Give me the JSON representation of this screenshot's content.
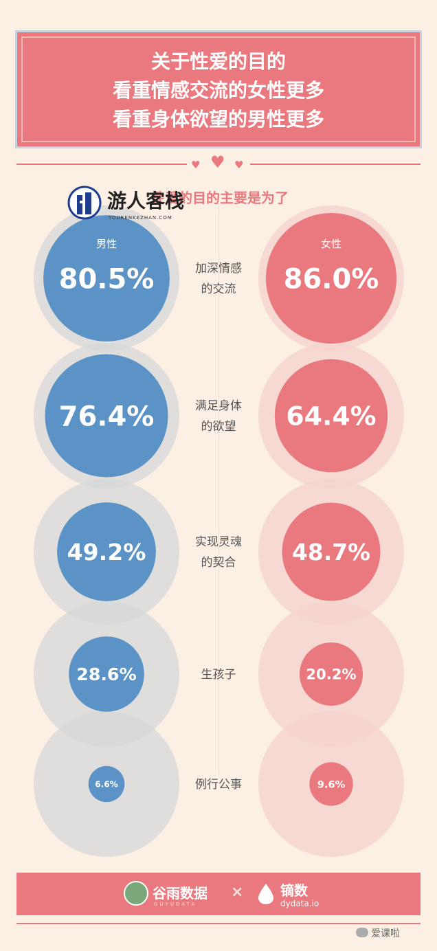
{
  "header": {
    "title_lines": [
      "关于性爱的目的",
      "看重情感交流的女性更多",
      "看重身体欲望的男性更多"
    ]
  },
  "subtitle": "性爱的目的主要是为了",
  "watermark": {
    "text": "游人客栈",
    "sub": "YOURENKEZHAN.COM",
    "icon": "building-logo-icon"
  },
  "labels": {
    "male": "男性",
    "female": "女性"
  },
  "colors": {
    "male": "#5b93c6",
    "female": "#e9797e",
    "male_halo": "#d6d8da",
    "female_halo": "#f6d2cd",
    "banner": "#e9797e",
    "background": "#fcefe3"
  },
  "chart_data": {
    "type": "bubble",
    "categories": [
      "加深情感的交流",
      "满足身体的欲望",
      "实现灵魂的契合",
      "生孩子",
      "例行公事"
    ],
    "category_lines": [
      [
        "加深情感",
        "的交流"
      ],
      [
        "满足身体",
        "的欲望"
      ],
      [
        "实现灵魂",
        "的契合"
      ],
      [
        "生孩子"
      ],
      [
        "例行公事"
      ]
    ],
    "series": [
      {
        "name": "男性",
        "values": [
          80.5,
          76.4,
          49.2,
          28.6,
          6.6
        ],
        "labels": [
          "80.5%",
          "76.4%",
          "49.2%",
          "28.6%",
          "6.6%"
        ]
      },
      {
        "name": "女性",
        "values": [
          86.0,
          64.4,
          48.7,
          20.2,
          9.6
        ],
        "labels": [
          "86.0%",
          "64.4%",
          "48.7%",
          "20.2%",
          "9.6%"
        ]
      }
    ],
    "unit": "%"
  },
  "footer": {
    "brand1": "谷雨数据",
    "brand1_sub": "GUYUDATA",
    "separator": "×",
    "brand2": "镝数",
    "brand2_sub": "dydata.io"
  },
  "wechat": {
    "account": "爱课啦",
    "icon": "wechat-icon"
  }
}
